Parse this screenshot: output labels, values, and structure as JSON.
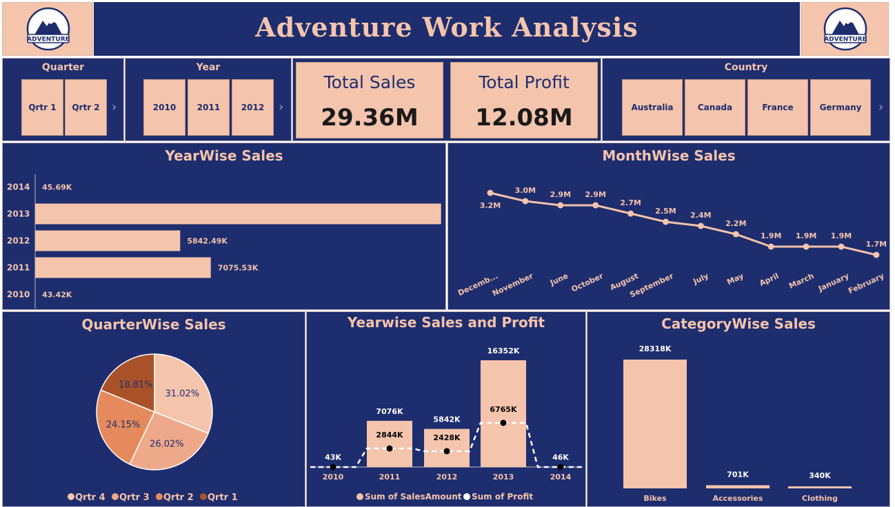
{
  "header": {
    "title": "Adventure Work Analysis",
    "logo_text": "ADVENTURE"
  },
  "slicers": {
    "quarter": {
      "label": "Quarter",
      "items": [
        "Qrtr 1",
        "Qrtr 2"
      ]
    },
    "year": {
      "label": "Year",
      "items": [
        "2010",
        "2011",
        "2012"
      ]
    },
    "country": {
      "label": "Country",
      "items": [
        "Australia",
        "Canada",
        "France",
        "Germany"
      ]
    }
  },
  "kpis": {
    "total_sales": {
      "label": "Total Sales",
      "value": "29.36M"
    },
    "total_profit": {
      "label": "Total Profit",
      "value": "12.08M"
    }
  },
  "colors": {
    "panel": "#1e2d6e",
    "accent": "#f4c4ad",
    "pie": [
      "#f4c4ad",
      "#eea98a",
      "#e58a5c",
      "#a9522a"
    ]
  },
  "chart_data": [
    {
      "type": "bar",
      "orientation": "horizontal",
      "title": "YearWise Sales",
      "categories": [
        "2014",
        "2013",
        "2012",
        "2011",
        "2010"
      ],
      "values": [
        45.69,
        16351.55,
        5842.49,
        7075.53,
        43.42
      ],
      "labels": [
        "45.69K",
        "",
        "5842.49K",
        "7075.53K",
        "43.42K"
      ]
    },
    {
      "type": "line",
      "title": "MonthWise Sales",
      "categories": [
        "Decemb...",
        "November",
        "June",
        "October",
        "August",
        "September",
        "July",
        "May",
        "April",
        "March",
        "January",
        "February"
      ],
      "values": [
        3.2,
        3.0,
        2.9,
        2.9,
        2.7,
        2.5,
        2.4,
        2.2,
        1.9,
        1.9,
        1.9,
        1.7
      ],
      "labels": [
        "3.2M",
        "3.0M",
        "2.9M",
        "2.9M",
        "2.7M",
        "2.5M",
        "2.4M",
        "2.2M",
        "1.9M",
        "1.9M",
        "1.9M",
        "1.7M"
      ]
    },
    {
      "type": "pie",
      "title": "QuarterWise Sales",
      "categories": [
        "Qrtr 4",
        "Qrtr 3",
        "Qrtr 2",
        "Qrtr 1"
      ],
      "values": [
        31.02,
        26.02,
        24.15,
        18.81
      ],
      "labels": [
        "31.02%",
        "26.02%",
        "24.15%",
        "18.81%"
      ]
    },
    {
      "type": "bar",
      "title": "Yearwise Sales and Profit",
      "categories": [
        "2010",
        "2011",
        "2012",
        "2013",
        "2014"
      ],
      "series": [
        {
          "name": "Sum of SalesAmount",
          "values": [
            43,
            7076,
            5842,
            16352,
            46
          ],
          "labels": [
            "43K",
            "7076K",
            "5842K",
            "16352K",
            "46K"
          ]
        },
        {
          "name": "Sum of Profit",
          "values": [
            0,
            2844,
            2428,
            6765,
            0
          ],
          "labels": [
            "",
            "2844K",
            "2428K",
            "6765K",
            ""
          ]
        }
      ]
    },
    {
      "type": "bar",
      "title": "CategoryWise Sales",
      "categories": [
        "Bikes",
        "Accessories",
        "Clothing"
      ],
      "values": [
        28318,
        701,
        340
      ],
      "labels": [
        "28318K",
        "701K",
        "340K"
      ]
    }
  ]
}
